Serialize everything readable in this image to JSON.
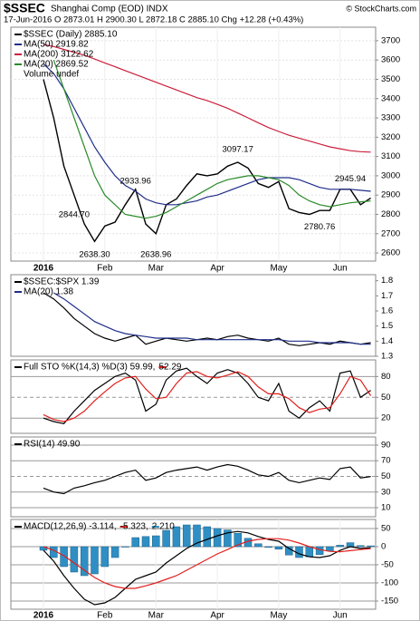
{
  "header": {
    "symbol": "$SSEC",
    "name": "Shanghai Comp (EOD) INDX",
    "quote": "17-Jun-2016 O 2873.01 H 2900.30 L 2872.18 C 2885.10 Chg +12.28 (+0.43%)",
    "credit": "© StockCharts.com"
  },
  "chart_data": [
    {
      "type": "line",
      "categories": [
        "2016",
        null,
        null,
        null,
        null,
        null,
        "Feb",
        null,
        null,
        null,
        null,
        "Mar",
        null,
        null,
        null,
        null,
        null,
        "Apr",
        null,
        null,
        null,
        null,
        null,
        "May",
        null,
        null,
        null,
        null,
        null,
        "Jun",
        null,
        null,
        null
      ],
      "ylim": [
        2558,
        3770
      ],
      "yticks": [
        2600,
        2700,
        2800,
        2900,
        3000,
        3100,
        3200,
        3300,
        3400,
        3500,
        3600,
        3700
      ],
      "grid": true,
      "note": "Volume undef",
      "annotations": [
        {
          "value": 3097.17,
          "label": "3097.17"
        },
        {
          "value": 2933.96,
          "label": "2933.96"
        },
        {
          "value": 2844.7,
          "label": "2844.70"
        },
        {
          "value": 2638.3,
          "label": "2638.30"
        },
        {
          "value": 2638.96,
          "label": "2638.96"
        },
        {
          "value": 2945.94,
          "label": "2945.94"
        },
        {
          "value": 2780.76,
          "label": "2780.76"
        }
      ],
      "series": [
        {
          "name": "$SSEC (Daily) 2885.10",
          "color": "#000000",
          "values": [
            3500,
            3300,
            3050,
            2900,
            2750,
            2660,
            2740,
            2760,
            2850,
            2930,
            2750,
            2700,
            2850,
            2880,
            2950,
            3010,
            3000,
            3010,
            3050,
            3070,
            3040,
            2960,
            2940,
            2970,
            2830,
            2810,
            2800,
            2820,
            2820,
            2930,
            2930,
            2850,
            2885.1
          ]
        },
        {
          "name": "MA(50) 2919.82",
          "color": "#1f2d8a",
          "values": [
            3580,
            3530,
            3450,
            3350,
            3250,
            3150,
            3070,
            3000,
            2950,
            2920,
            2880,
            2860,
            2850,
            2850,
            2860,
            2870,
            2890,
            2900,
            2920,
            2940,
            2960,
            2980,
            2990,
            2990,
            2990,
            2980,
            2960,
            2940,
            2930,
            2930,
            2930,
            2925,
            2919.82
          ]
        },
        {
          "name": "MA(200) 3122.62",
          "color": "#cc1f3c",
          "values": [
            3680,
            3670,
            3655,
            3640,
            3625,
            3605,
            3585,
            3565,
            3545,
            3525,
            3505,
            3485,
            3465,
            3445,
            3425,
            3405,
            3390,
            3370,
            3350,
            3325,
            3300,
            3275,
            3250,
            3230,
            3210,
            3195,
            3180,
            3165,
            3150,
            3140,
            3130,
            3125,
            3122.62
          ]
        },
        {
          "name": "MA(20) 2869.52",
          "color": "#2a8a2a",
          "values": [
            null,
            3600,
            3450,
            3300,
            3150,
            3000,
            2900,
            2850,
            2800,
            2790,
            2780,
            2790,
            2810,
            2840,
            2870,
            2900,
            2930,
            2960,
            2980,
            2990,
            3000,
            3000,
            2990,
            2980,
            2950,
            2900,
            2870,
            2850,
            2840,
            2850,
            2860,
            2865,
            2869.52
          ]
        }
      ]
    },
    {
      "type": "line",
      "ylim": [
        1.3,
        1.84
      ],
      "yticks": [
        1.3,
        1.4,
        1.5,
        1.6,
        1.7,
        1.8
      ],
      "grid": false,
      "series": [
        {
          "name": "$SSEC:$SPX 1.39",
          "color": "#000000",
          "values": [
            1.72,
            1.68,
            1.62,
            1.55,
            1.5,
            1.45,
            1.42,
            1.4,
            1.42,
            1.44,
            1.38,
            1.4,
            1.42,
            1.41,
            1.4,
            1.41,
            1.42,
            1.41,
            1.43,
            1.44,
            1.42,
            1.41,
            1.4,
            1.42,
            1.38,
            1.37,
            1.38,
            1.39,
            1.38,
            1.4,
            1.39,
            1.38,
            1.39
          ]
        },
        {
          "name": "MA(20) 1.38",
          "color": "#1f2d8a",
          "values": [
            null,
            1.72,
            1.68,
            1.63,
            1.58,
            1.53,
            1.5,
            1.47,
            1.45,
            1.44,
            1.43,
            1.42,
            1.42,
            1.42,
            1.42,
            1.41,
            1.41,
            1.41,
            1.41,
            1.41,
            1.41,
            1.41,
            1.41,
            1.41,
            1.4,
            1.4,
            1.4,
            1.39,
            1.39,
            1.39,
            1.39,
            1.38,
            1.38
          ]
        }
      ]
    },
    {
      "type": "line",
      "ylim": [
        -2,
        104
      ],
      "yticks": [
        20,
        50,
        80
      ],
      "grid": true,
      "legend": "inline",
      "series": [
        {
          "name": "Full STO %K(14,3) %D(3) 59.99,",
          "color": "#000000",
          "values": [
            20,
            15,
            12,
            30,
            45,
            60,
            70,
            80,
            85,
            75,
            30,
            40,
            75,
            88,
            92,
            80,
            70,
            85,
            90,
            85,
            70,
            50,
            45,
            70,
            30,
            20,
            35,
            45,
            30,
            85,
            88,
            50,
            59.99
          ]
        },
        {
          "name": "52.29",
          "color": "#e0201c",
          "values": [
            25,
            18,
            15,
            20,
            30,
            45,
            58,
            70,
            78,
            80,
            62,
            48,
            50,
            70,
            85,
            87,
            80,
            78,
            82,
            87,
            80,
            65,
            55,
            55,
            48,
            35,
            28,
            33,
            35,
            55,
            80,
            75,
            52.29
          ]
        }
      ]
    },
    {
      "type": "line",
      "ylim": [
        -1.6,
        100.4
      ],
      "yticks": [
        10,
        30,
        50,
        70,
        90
      ],
      "grid": true,
      "series": [
        {
          "name": "RSI(14) 49.90",
          "color": "#000000",
          "values": [
            35,
            30,
            28,
            35,
            38,
            42,
            45,
            50,
            55,
            58,
            45,
            48,
            55,
            58,
            60,
            62,
            58,
            62,
            65,
            63,
            58,
            52,
            50,
            55,
            45,
            42,
            45,
            48,
            46,
            60,
            62,
            48,
            49.9
          ]
        }
      ]
    },
    {
      "type": "line",
      "categories": [
        "2016",
        null,
        null,
        null,
        null,
        null,
        "Feb",
        null,
        null,
        null,
        null,
        "Mar",
        null,
        null,
        null,
        null,
        null,
        "Apr",
        null,
        null,
        null,
        null,
        null,
        "May",
        null,
        null,
        null,
        null,
        null,
        "Jun",
        null,
        null,
        null
      ],
      "ylim": [
        -172.5,
        75
      ],
      "yticks": [
        -150,
        -100,
        -50,
        0,
        50
      ],
      "grid": true,
      "legend": "inline",
      "series": [
        {
          "name": "MACD(12,26,9) -3.114,",
          "color": "#000000",
          "values": [
            -10,
            -40,
            -80,
            -115,
            -145,
            -160,
            -155,
            -140,
            -115,
            -90,
            -80,
            -70,
            -45,
            -25,
            -5,
            10,
            20,
            30,
            38,
            42,
            38,
            28,
            20,
            15,
            -5,
            -20,
            -28,
            -30,
            -25,
            -10,
            0,
            -5,
            -3.114
          ]
        },
        {
          "name": "-5.323,",
          "color": "#e0201c",
          "values": [
            0,
            -10,
            -25,
            -45,
            -65,
            -85,
            -100,
            -110,
            -115,
            -115,
            -108,
            -100,
            -90,
            -80,
            -65,
            -50,
            -35,
            -20,
            -8,
            5,
            15,
            20,
            22,
            22,
            18,
            10,
            0,
            -8,
            -13,
            -14,
            -11,
            -8,
            -5.323
          ]
        },
        {
          "name": "2.210",
          "color": "#2f8fc4",
          "style": "bar",
          "values": [
            -10,
            -30,
            -55,
            -70,
            -80,
            -75,
            -55,
            -30,
            0,
            25,
            28,
            30,
            45,
            55,
            60,
            60,
            55,
            50,
            46,
            37,
            23,
            8,
            -2,
            -7,
            -23,
            -30,
            -28,
            -22,
            -12,
            4,
            11,
            3,
            2.21
          ]
        }
      ]
    }
  ]
}
